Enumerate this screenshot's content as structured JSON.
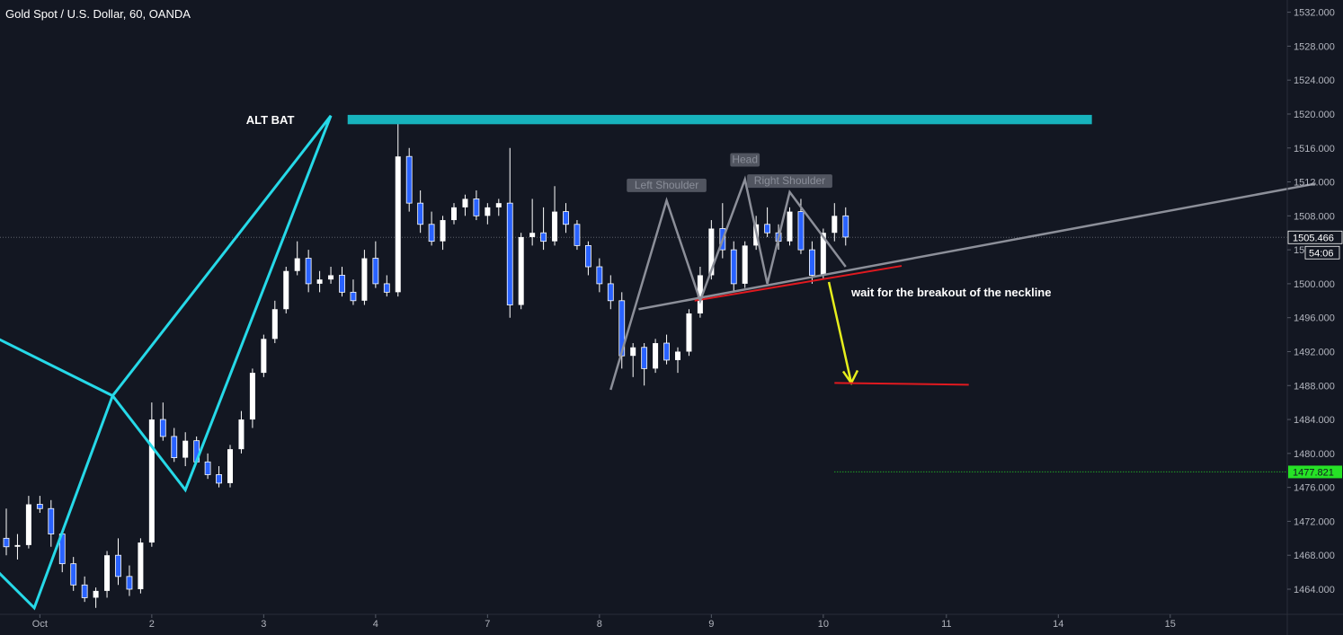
{
  "header": {
    "title": "Gold Spot / U.S. Dollar, 60, OANDA"
  },
  "colors": {
    "background": "#131722",
    "bull_candle": "#ffffff",
    "bear_candle": "#2962ff",
    "bat_pattern": "#26d9e8",
    "bat_zone": "#17b3bd",
    "hs_pattern": "#8c8f99",
    "neckline_red": "#e0191f",
    "arrow_yellow": "#e6ee1c",
    "target_green": "#26e226",
    "axis_text": "#b2b5be"
  },
  "chart_data": {
    "type": "candlestick",
    "symbol": "Gold Spot / U.S. Dollar",
    "interval": "60",
    "source": "OANDA",
    "y_axis": {
      "ylim": [
        1461.5,
        1533.5
      ],
      "ticks": [
        "1532.000",
        "1528.000",
        "1524.000",
        "1520.000",
        "1516.000",
        "1512.000",
        "1508.000",
        "1504.000",
        "1500.000",
        "1496.000",
        "1492.000",
        "1488.000",
        "1484.000",
        "1480.000",
        "1476.000",
        "1472.000",
        "1468.000",
        "1464.000"
      ],
      "tick_values": [
        1532,
        1528,
        1524,
        1520,
        1516,
        1512,
        1508,
        1504,
        1500,
        1496,
        1492,
        1488,
        1484,
        1480,
        1476,
        1472,
        1468,
        1464
      ]
    },
    "x_axis": {
      "labels": [
        "Oct",
        "2",
        "3",
        "4",
        "7",
        "8",
        "9",
        "10",
        "11",
        "14",
        "15"
      ],
      "bar_index": [
        3,
        13,
        23,
        33,
        43,
        53,
        63,
        73,
        84,
        94,
        104
      ]
    },
    "current_price": {
      "value": "1505.466",
      "value_num": 1505.466,
      "countdown": "54:06"
    },
    "target_price": {
      "value": "1477.821",
      "value_num": 1477.821
    },
    "candles": [
      [
        1470.0,
        1473.5,
        1468.0,
        1469.0
      ],
      [
        1469.0,
        1470.5,
        1467.5,
        1469.2
      ],
      [
        1469.2,
        1475.0,
        1468.8,
        1474.0
      ],
      [
        1474.0,
        1475.0,
        1473.0,
        1473.5
      ],
      [
        1473.5,
        1474.5,
        1469.0,
        1470.5
      ],
      [
        1470.5,
        1471.0,
        1466.0,
        1467.0
      ],
      [
        1467.0,
        1467.8,
        1463.8,
        1464.5
      ],
      [
        1464.5,
        1465.5,
        1462.5,
        1463.0
      ],
      [
        1463.0,
        1464.2,
        1461.8,
        1463.8
      ],
      [
        1463.8,
        1468.5,
        1463.0,
        1468.0
      ],
      [
        1468.0,
        1470.0,
        1464.5,
        1465.5
      ],
      [
        1465.5,
        1466.8,
        1463.2,
        1464.0
      ],
      [
        1464.0,
        1470.0,
        1463.5,
        1469.5
      ],
      [
        1469.5,
        1486.0,
        1469.0,
        1484.0
      ],
      [
        1484.0,
        1486.0,
        1481.5,
        1482.0
      ],
      [
        1482.0,
        1483.0,
        1479.0,
        1479.5
      ],
      [
        1479.5,
        1482.5,
        1478.5,
        1481.5
      ],
      [
        1481.5,
        1482.0,
        1479.0,
        1479.0
      ],
      [
        1479.0,
        1480.0,
        1477.0,
        1477.5
      ],
      [
        1477.5,
        1478.5,
        1476.0,
        1476.5
      ],
      [
        1476.5,
        1481.0,
        1476.0,
        1480.5
      ],
      [
        1480.5,
        1485.0,
        1480.0,
        1484.0
      ],
      [
        1484.0,
        1490.0,
        1483.0,
        1489.5
      ],
      [
        1489.5,
        1494.0,
        1489.0,
        1493.5
      ],
      [
        1493.5,
        1498.0,
        1493.0,
        1497.0
      ],
      [
        1497.0,
        1502.0,
        1496.5,
        1501.5
      ],
      [
        1501.5,
        1505.0,
        1501.0,
        1503.0
      ],
      [
        1503.0,
        1504.0,
        1499.0,
        1500.0
      ],
      [
        1500.0,
        1501.5,
        1499.0,
        1500.5
      ],
      [
        1500.5,
        1502.0,
        1500.0,
        1501.0
      ],
      [
        1501.0,
        1502.0,
        1498.5,
        1499.0
      ],
      [
        1499.0,
        1500.5,
        1497.5,
        1498.0
      ],
      [
        1498.0,
        1504.0,
        1497.5,
        1503.0
      ],
      [
        1503.0,
        1505.0,
        1499.5,
        1500.0
      ],
      [
        1500.0,
        1501.0,
        1498.5,
        1499.0
      ],
      [
        1499.0,
        1519.5,
        1498.5,
        1515.0
      ],
      [
        1515.0,
        1516.0,
        1508.5,
        1509.5
      ],
      [
        1509.5,
        1511.0,
        1506.0,
        1507.0
      ],
      [
        1507.0,
        1508.5,
        1504.5,
        1505.0
      ],
      [
        1505.0,
        1508.0,
        1504.0,
        1507.5
      ],
      [
        1507.5,
        1509.5,
        1507.0,
        1509.0
      ],
      [
        1509.0,
        1510.5,
        1508.0,
        1510.0
      ],
      [
        1510.0,
        1511.0,
        1507.5,
        1508.0
      ],
      [
        1508.0,
        1509.5,
        1507.0,
        1509.0
      ],
      [
        1509.0,
        1510.0,
        1508.0,
        1509.5
      ],
      [
        1509.5,
        1516.0,
        1496.0,
        1497.5
      ],
      [
        1497.5,
        1506.0,
        1497.0,
        1505.5
      ],
      [
        1505.5,
        1510.0,
        1504.5,
        1506.0
      ],
      [
        1506.0,
        1509.0,
        1504.0,
        1505.0
      ],
      [
        1505.0,
        1511.5,
        1504.5,
        1508.5
      ],
      [
        1508.5,
        1509.5,
        1506.0,
        1507.0
      ],
      [
        1507.0,
        1507.5,
        1504.0,
        1504.5
      ],
      [
        1504.5,
        1505.0,
        1501.0,
        1502.0
      ],
      [
        1502.0,
        1503.0,
        1499.0,
        1500.0
      ],
      [
        1500.0,
        1501.0,
        1497.0,
        1498.0
      ],
      [
        1498.0,
        1499.0,
        1490.0,
        1491.5
      ],
      [
        1491.5,
        1493.0,
        1489.0,
        1492.5
      ],
      [
        1492.5,
        1493.0,
        1488.0,
        1490.0
      ],
      [
        1490.0,
        1493.5,
        1489.5,
        1493.0
      ],
      [
        1493.0,
        1494.0,
        1490.5,
        1491.0
      ],
      [
        1491.0,
        1492.5,
        1489.5,
        1492.0
      ],
      [
        1492.0,
        1497.0,
        1491.5,
        1496.5
      ],
      [
        1496.5,
        1502.0,
        1496.0,
        1501.0
      ],
      [
        1501.0,
        1507.5,
        1500.5,
        1506.5
      ],
      [
        1506.5,
        1509.5,
        1503.0,
        1504.0
      ],
      [
        1504.0,
        1505.0,
        1499.0,
        1500.0
      ],
      [
        1500.0,
        1505.0,
        1499.5,
        1504.5
      ],
      [
        1504.5,
        1508.0,
        1504.0,
        1507.0
      ],
      [
        1507.0,
        1509.0,
        1505.5,
        1506.0
      ],
      [
        1506.0,
        1507.0,
        1504.0,
        1505.0
      ],
      [
        1505.0,
        1509.0,
        1504.5,
        1508.5
      ],
      [
        1508.5,
        1510.0,
        1503.5,
        1504.0
      ],
      [
        1504.0,
        1505.0,
        1500.0,
        1501.0
      ],
      [
        1501.0,
        1506.5,
        1500.5,
        1506.0
      ],
      [
        1506.0,
        1509.5,
        1505.0,
        1508.0
      ],
      [
        1508.0,
        1509.0,
        1504.5,
        1505.5
      ]
    ],
    "drawings": {
      "alt_bat_label": "ALT BAT",
      "alt_bat_zone": {
        "price_low": 1518.8,
        "price_high": 1519.9,
        "bar_from": 30.5,
        "bar_to": 97
      },
      "bat_pattern_points": [
        [
          -3,
          1495
        ],
        [
          9.5,
          1486.8
        ],
        [
          16,
          1475.7
        ],
        [
          29,
          1519.8
        ],
        [
          9.5,
          1486.8
        ],
        [
          2.5,
          1461.8
        ],
        [
          -3,
          1469
        ]
      ],
      "hs_pattern_points": [
        [
          54,
          1487.5
        ],
        [
          59,
          1509.8
        ],
        [
          62,
          1498.0
        ],
        [
          66,
          1512.3
        ],
        [
          68,
          1500.0
        ],
        [
          70,
          1510.8
        ],
        [
          75,
          1502.0
        ]
      ],
      "hs_labels": [
        "Left Shoulder",
        "Head",
        "Right Shoulder"
      ],
      "neckline": {
        "from": [
          56.5,
          1497.0
        ],
        "to": [
          117,
          1511.8
        ]
      },
      "red_neckline": {
        "from": [
          61.5,
          1498.0
        ],
        "to": [
          80,
          1502.1
        ]
      },
      "breakout_note": "wait for the breakout of the neckline",
      "arrow": {
        "from": [
          73.5,
          1500.2
        ],
        "to": [
          75.5,
          1488.3
        ]
      },
      "target_line": {
        "from": [
          74,
          1488.3
        ],
        "to": [
          86,
          1488.1
        ]
      },
      "target_dotted": {
        "bar_from": 74,
        "price": 1477.821
      }
    }
  }
}
